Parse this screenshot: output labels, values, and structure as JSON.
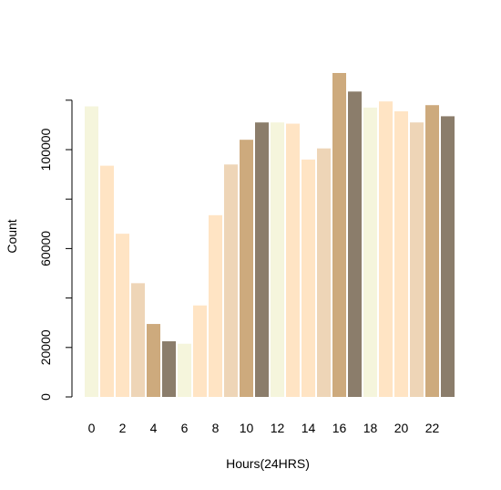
{
  "chart_data": {
    "type": "bar",
    "title": "",
    "xlabel": "Hours(24HRS)",
    "ylabel": "Count",
    "x": [
      0,
      1,
      2,
      3,
      4,
      5,
      6,
      7,
      8,
      9,
      10,
      11,
      12,
      13,
      14,
      15,
      16,
      17,
      18,
      19,
      20,
      21,
      22,
      23
    ],
    "values": [
      117500,
      93500,
      66000,
      46000,
      29500,
      22500,
      21500,
      37000,
      73500,
      94000,
      104000,
      111000,
      111000,
      110500,
      96000,
      100500,
      131000,
      123500,
      117000,
      119500,
      115500,
      111000,
      118000,
      113500
    ],
    "colors": [
      "#F5F5DC",
      "#FFE4C4",
      "#FFE4C4",
      "#EED5B7",
      "#CDAA7D",
      "#8B7D6B",
      "#F5F5DC",
      "#FFE4C4",
      "#FFE4C4",
      "#EED5B7",
      "#CDAA7D",
      "#8B7D6B",
      "#F5F5DC",
      "#FFE4C4",
      "#FFE4C4",
      "#EED5B7",
      "#CDAA7D",
      "#8B7D6B",
      "#F5F5DC",
      "#FFE4C4",
      "#FFE4C4",
      "#EED5B7",
      "#CDAA7D",
      "#8B7D6B"
    ],
    "x_tick_labels": [
      "0",
      "2",
      "4",
      "6",
      "8",
      "10",
      "12",
      "14",
      "16",
      "18",
      "20",
      "22"
    ],
    "y_ticks": [
      0,
      20000,
      40000,
      60000,
      80000,
      100000,
      120000
    ],
    "y_tick_labels": [
      "0",
      "20000",
      "",
      "60000",
      "",
      "100000",
      ""
    ],
    "ylim": [
      0,
      135000
    ],
    "grid": false,
    "legend": "none"
  }
}
